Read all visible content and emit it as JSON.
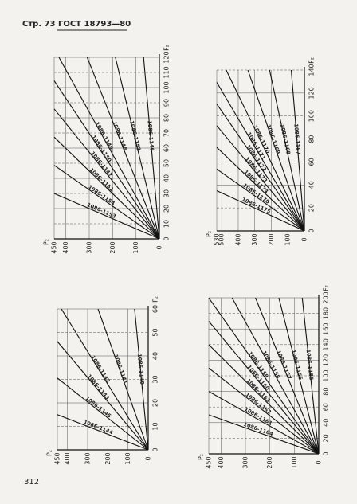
{
  "header": {
    "title": "Стр. 73 ГОСТ 18793—80"
  },
  "page_number": "312",
  "charts": [
    {
      "f_label": "F₂",
      "p_label": "P₂",
      "f_ticks": [
        0,
        10,
        20,
        30,
        40,
        50,
        60,
        70,
        80,
        90,
        100,
        110,
        120
      ],
      "p_ticks": [
        0,
        100,
        200,
        300,
        400,
        450
      ],
      "lines": [
        "1086-1146",
        "1086-1152",
        "1086-1148",
        "1086-1149",
        "1086-1150",
        "1086-1147",
        "1086-1151",
        "1086-1154",
        "1086-1153"
      ]
    },
    {
      "f_label": "F₂",
      "p_label": "P₂",
      "f_ticks": [
        0,
        20,
        40,
        60,
        80,
        100,
        120,
        140
      ],
      "p_ticks": [
        0,
        100,
        200,
        300,
        400,
        500,
        530
      ],
      "lines": [
        "1086-1167",
        "1086-1168",
        "1086-1169",
        "1086-1170",
        "1086-1171",
        "1086-1172",
        "1086-1173",
        "1086-1174",
        "1086-1176",
        "1086-1175"
      ]
    },
    {
      "f_label": "F₂",
      "p_label": "P₂",
      "f_ticks": [
        0,
        10,
        20,
        30,
        40,
        50,
        60
      ],
      "p_ticks": [
        0,
        100,
        200,
        300,
        400,
        450
      ],
      "lines": [
        "1086-1140",
        "1086-1141",
        "1086-1142",
        "1086-1143",
        "1086-1145",
        "1086-1144"
      ]
    },
    {
      "f_label": "F₂",
      "p_label": "P₂",
      "f_ticks": [
        0,
        20,
        40,
        60,
        80,
        100,
        120,
        140,
        160,
        180,
        200
      ],
      "p_ticks": [
        0,
        100,
        200,
        300,
        400,
        450
      ],
      "lines": [
        "1086-1155",
        "1086-1156",
        "1086-1157",
        "1086-1158",
        "1086-1159",
        "1086-1160",
        "1086-1163",
        "1086-1162",
        "1086-1161",
        "1086-1164"
      ]
    }
  ]
}
